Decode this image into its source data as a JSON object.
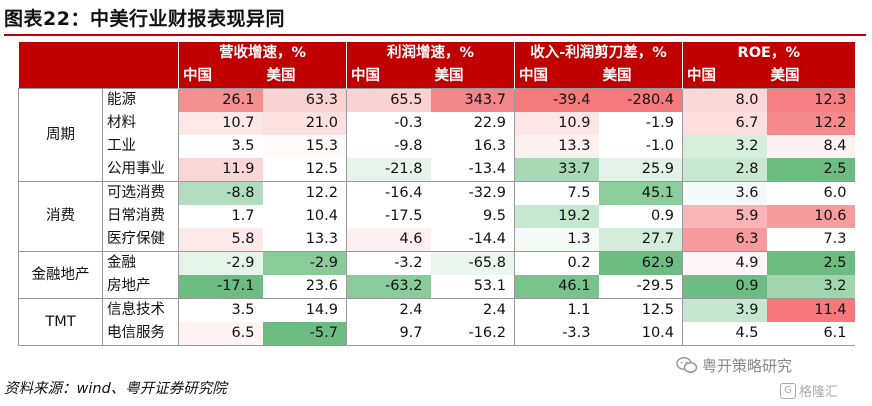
{
  "title": "图表22：中美行业财报表现异同",
  "source": "资料来源：wind、粤开证券研究院",
  "watermark": "粤开策略研究",
  "watermark_logo_text": "格隆汇",
  "headers": {
    "groups": [
      "营收增速，%",
      "利润增速，%",
      "收入-利润剪刀差，%",
      "ROE，%"
    ],
    "sub": [
      "中国",
      "美国"
    ]
  },
  "rows": [
    {
      "group": "周期",
      "sector": "能源",
      "values": [
        "26.1",
        "63.3",
        "65.5",
        "343.7",
        "-39.4",
        "-280.4",
        "8.0",
        "12.3"
      ],
      "colors": [
        "#f48f8f",
        "#fbd2d2",
        "#fbd2d2",
        "#f3868a",
        "#f57b7b",
        "#f5797d",
        "#fbd7d7",
        "#f57f82"
      ]
    },
    {
      "group": "周期",
      "sector": "材料",
      "values": [
        "10.7",
        "21.0",
        "-0.3",
        "22.9",
        "10.9",
        "-1.9",
        "6.7",
        "12.2"
      ],
      "colors": [
        "#fde8e8",
        "#fce1e1",
        "#ffffff",
        "#ffffff",
        "#fde6e6",
        "#ffffff",
        "#fcdede",
        "#f58a8c"
      ]
    },
    {
      "group": "周期",
      "sector": "工业",
      "values": [
        "3.5",
        "15.3",
        "-9.8",
        "16.3",
        "13.3",
        "-1.0",
        "3.2",
        "8.4"
      ],
      "colors": [
        "#ffffff",
        "#fffbfb",
        "#ffffff",
        "#ffffff",
        "#fef1f1",
        "#ffffff",
        "#d7eedd",
        "#fdf1f1"
      ]
    },
    {
      "group": "周期",
      "sector": "公用事业",
      "values": [
        "11.9",
        "12.5",
        "-21.8",
        "-13.4",
        "33.7",
        "25.9",
        "2.8",
        "2.5"
      ],
      "colors": [
        "#fbd6d8",
        "#ffffff",
        "#e6f4ea",
        "#ffffff",
        "#a8d8b4",
        "#e2f2e7",
        "#c8e8d0",
        "#6dbd82"
      ]
    },
    {
      "group": "消费",
      "sector": "可选消费",
      "values": [
        "-8.8",
        "12.2",
        "-16.4",
        "-32.9",
        "7.5",
        "45.1",
        "3.6",
        "6.0"
      ],
      "colors": [
        "#b1dcbd",
        "#ffffff",
        "#ffffff",
        "#ffffff",
        "#ffffff",
        "#8ccd9c",
        "#f4faf6",
        "#ffffff"
      ]
    },
    {
      "group": "消费",
      "sector": "日常消费",
      "values": [
        "1.7",
        "10.4",
        "-17.5",
        "9.5",
        "19.2",
        "0.9",
        "5.9",
        "10.6"
      ],
      "colors": [
        "#ffffff",
        "#ffffff",
        "#ffffff",
        "#ffffff",
        "#c7e8d0",
        "#ffffff",
        "#f8b4b6",
        "#f79c9e"
      ]
    },
    {
      "group": "消费",
      "sector": "医疗保健",
      "values": [
        "5.8",
        "13.3",
        "4.6",
        "-14.4",
        "1.3",
        "27.7",
        "6.3",
        "7.3"
      ],
      "colors": [
        "#fde9ea",
        "#ffffff",
        "#fdf0f0",
        "#ffffff",
        "#f4faf6",
        "#d4eddb",
        "#f79a9d",
        "#ffffff"
      ]
    },
    {
      "group": "金融地产",
      "sector": "金融",
      "values": [
        "-2.9",
        "-2.9",
        "-3.2",
        "-65.8",
        "0.2",
        "62.9",
        "4.9",
        "2.5"
      ],
      "colors": [
        "#e5f4e9",
        "#8acb9b",
        "#ffffff",
        "#eaf6ee",
        "#ffffff",
        "#6dbd82",
        "#fef6f6",
        "#6dbd82"
      ]
    },
    {
      "group": "金融地产",
      "sector": "房地产",
      "values": [
        "-17.1",
        "23.6",
        "-63.2",
        "53.1",
        "46.1",
        "-29.5",
        "0.9",
        "3.2"
      ],
      "colors": [
        "#6dbd82",
        "#ffffff",
        "#8acb9b",
        "#ffffff",
        "#79c38c",
        "#ffffff",
        "#6dbd82",
        "#a0d5ae"
      ]
    },
    {
      "group": "TMT",
      "sector": "信息技术",
      "values": [
        "3.5",
        "14.9",
        "2.4",
        "2.4",
        "1.1",
        "12.5",
        "3.9",
        "11.4"
      ],
      "colors": [
        "#ffffff",
        "#ffffff",
        "#ffffff",
        "#ffffff",
        "#ffffff",
        "#ffffff",
        "#c6e6cf",
        "#f6787b"
      ]
    },
    {
      "group": "TMT",
      "sector": "电信服务",
      "values": [
        "6.5",
        "-5.7",
        "9.7",
        "-16.2",
        "-3.3",
        "10.4",
        "4.5",
        "6.1"
      ],
      "colors": [
        "#fef4f4",
        "#6dbd82",
        "#ffffff",
        "#ffffff",
        "#ffffff",
        "#ffffff",
        "#ffffff",
        "#ffffff"
      ]
    }
  ]
}
